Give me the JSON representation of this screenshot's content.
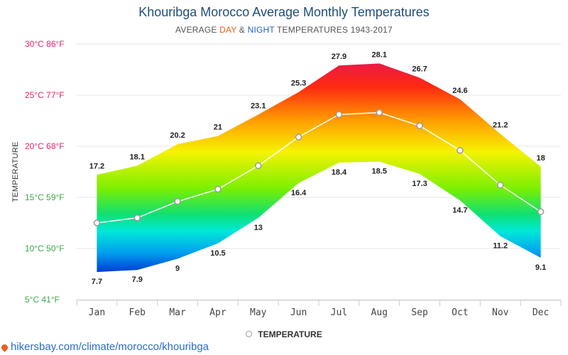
{
  "header": {
    "title": "Khouribga Morocco Average Monthly Temperatures",
    "subtitle_prefix": "AVERAGE ",
    "subtitle_day": "DAY",
    "subtitle_amp": " & ",
    "subtitle_night": "NIGHT",
    "subtitle_suffix": " TEMPERATURES 1943-2017"
  },
  "legend": {
    "label": "TEMPERATURE"
  },
  "footer": {
    "url": "hikersbay.com/climate/morocco/khouribga"
  },
  "colors": {
    "title": "#1f4e79",
    "grid": "#e6e6e6",
    "avg_line": "#ffffff",
    "axis_label": "#222222"
  },
  "chart_data": {
    "type": "area",
    "title": "Khouribga Morocco Average Monthly Temperatures",
    "ylabel": "TEMPERATURE",
    "xlabel": "",
    "categories": [
      "Jan",
      "Feb",
      "Mar",
      "Apr",
      "May",
      "Jun",
      "Jul",
      "Aug",
      "Sep",
      "Oct",
      "Nov",
      "Dec"
    ],
    "series": [
      {
        "name": "Day",
        "values": [
          17.2,
          18.1,
          20.2,
          21,
          23.1,
          25.3,
          27.9,
          28.1,
          26.7,
          24.6,
          21.2,
          18
        ]
      },
      {
        "name": "Night",
        "values": [
          7.7,
          7.9,
          9,
          10.5,
          13,
          16.4,
          18.4,
          18.5,
          17.3,
          14.7,
          11.2,
          9.1
        ]
      },
      {
        "name": "Temperature",
        "values": [
          12.5,
          13,
          14.6,
          15.8,
          18.1,
          20.9,
          23.1,
          23.3,
          22,
          19.6,
          16.2,
          13.6
        ]
      }
    ],
    "ylim": [
      5,
      30
    ],
    "yticks": [
      {
        "value": 30,
        "label": "30°C 86°F",
        "color": "#e8206a"
      },
      {
        "value": 25,
        "label": "25°C 77°F",
        "color": "#e8206a"
      },
      {
        "value": 20,
        "label": "20°C 68°F",
        "color": "#e8206a"
      },
      {
        "value": 15,
        "label": "15°C 59°F",
        "color": "#3aa84a"
      },
      {
        "value": 10,
        "label": "10°C 50°F",
        "color": "#3aa84a"
      },
      {
        "value": 5,
        "label": "5°C 41°F",
        "color": "#3aa84a"
      }
    ],
    "legend_position": "bottom-center"
  }
}
